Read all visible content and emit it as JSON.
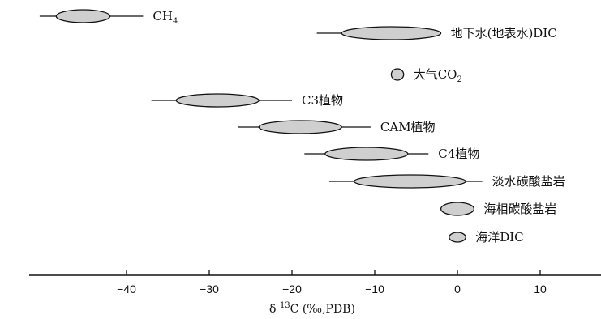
{
  "chart_data": {
    "type": "range",
    "xlim": [
      -52,
      17
    ],
    "xticks": [
      -40,
      -30,
      -20,
      -10,
      0,
      10
    ],
    "xticklabels": [
      "−40",
      "−30",
      "−20",
      "−10",
      "0",
      "10"
    ],
    "xlabel": {
      "prefix": "δ ",
      "sup": "13",
      "suffix": "C (‰,PDB)"
    },
    "items": [
      {
        "label": "CH",
        "sub": "4",
        "suffix": "",
        "range": [
          -50.5,
          -38.0
        ],
        "core": [
          -48.5,
          -42.0
        ]
      },
      {
        "label": "地下水(地表水)DIC",
        "sub": "",
        "suffix": "",
        "range": [
          -17.0,
          -2.0
        ],
        "core": [
          -14.0,
          -2.0
        ]
      },
      {
        "label": "大气CO",
        "sub": "2",
        "suffix": "",
        "range": [
          -8.0,
          -6.5
        ],
        "core": [
          -8.0,
          -6.5
        ]
      },
      {
        "label": "C3植物",
        "sub": "",
        "suffix": "",
        "range": [
          -37.0,
          -20.0
        ],
        "core": [
          -34.0,
          -24.0
        ]
      },
      {
        "label": "CAM植物",
        "sub": "",
        "suffix": "",
        "range": [
          -26.5,
          -10.5
        ],
        "core": [
          -24.0,
          -14.0
        ]
      },
      {
        "label": "C4植物",
        "sub": "",
        "suffix": "",
        "range": [
          -18.5,
          -3.5
        ],
        "core": [
          -16.0,
          -6.0
        ]
      },
      {
        "label": "淡水碳酸盐岩",
        "sub": "",
        "suffix": "",
        "range": [
          -15.5,
          3.0
        ],
        "core": [
          -12.5,
          1.0
        ]
      },
      {
        "label": "海相碳酸盐岩",
        "sub": "",
        "suffix": "",
        "range": [
          -2.0,
          2.0
        ],
        "core": [
          -2.0,
          2.0
        ]
      },
      {
        "label": "海洋DIC",
        "sub": "",
        "suffix": "",
        "range": [
          -1.0,
          1.0
        ],
        "core": [
          -1.0,
          1.0
        ]
      }
    ]
  },
  "colors": {
    "fill": "#cfcfcf",
    "stroke": "#111111",
    "background": "#ffffff"
  }
}
